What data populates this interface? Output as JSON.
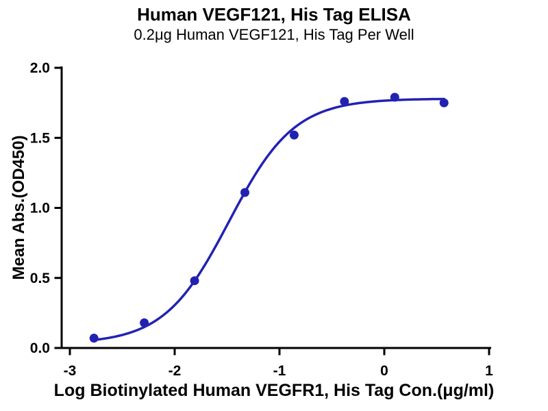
{
  "chart_data": {
    "type": "scatter",
    "title": "Human VEGF121, His Tag ELISA",
    "subtitle": "0.2μg Human VEGF121, His Tag Per Well",
    "xlabel": "Log Biotinylated Human VEGFR1, His Tag Con.(μg/ml)",
    "ylabel": "Mean Abs.(OD450)",
    "xlim": [
      -3,
      1
    ],
    "ylim": [
      0,
      2
    ],
    "x_ticks": [
      -3,
      -2,
      -1,
      0,
      1
    ],
    "x_tick_labels": [
      "-3",
      "-2",
      "-1",
      "0",
      "1"
    ],
    "y_ticks": [
      0,
      0.5,
      1,
      1.5,
      2
    ],
    "y_tick_labels": [
      "0.0",
      "0.5",
      "1.0",
      "1.5",
      "2.0"
    ],
    "grid": false,
    "legend": "none",
    "axis_color": "#000000",
    "series": [
      {
        "color": "#2222b2",
        "points": [
          {
            "x": -2.77,
            "y": 0.07
          },
          {
            "x": -2.29,
            "y": 0.18
          },
          {
            "x": -1.81,
            "y": 0.48
          },
          {
            "x": -1.33,
            "y": 1.11
          },
          {
            "x": -0.86,
            "y": 1.52
          },
          {
            "x": -0.38,
            "y": 1.76
          },
          {
            "x": 0.1,
            "y": 1.79
          },
          {
            "x": 0.57,
            "y": 1.75
          }
        ],
        "fit": {
          "model": "4PL",
          "bottom": 0.03,
          "top": 1.78,
          "logEC50": -1.48,
          "hillslope": 1.4
        }
      }
    ]
  }
}
